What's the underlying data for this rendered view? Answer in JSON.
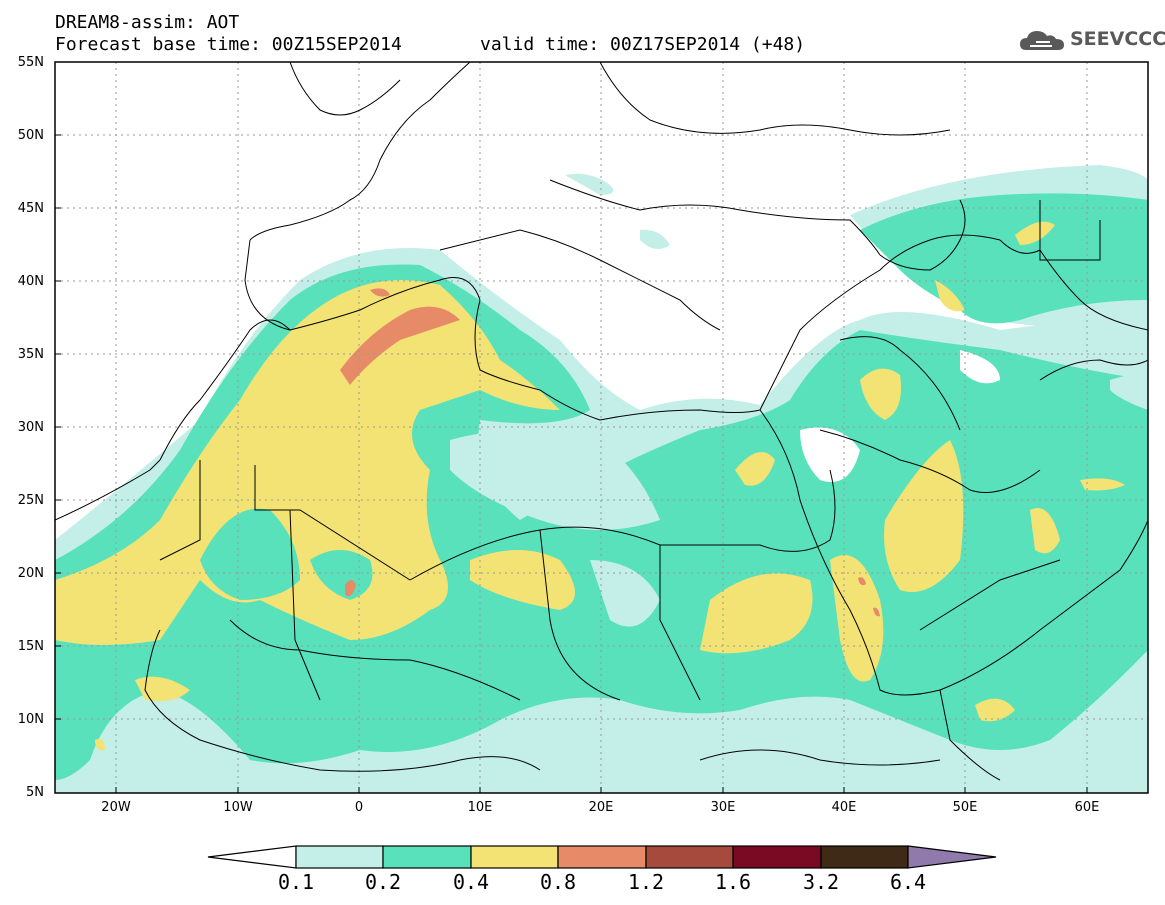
{
  "header": {
    "line1": "DREAM8-assim: AOT",
    "line2a": "Forecast base time: 00Z15SEP2014",
    "line2b": "valid time: 00Z17SEP2014 (+48)",
    "logo_text": "SEEVCCC"
  },
  "axes": {
    "lat_labels": [
      "55N",
      "50N",
      "45N",
      "40N",
      "35N",
      "30N",
      "25N",
      "20N",
      "15N",
      "10N",
      "5N"
    ],
    "lon_labels": [
      "20W",
      "10W",
      "0",
      "10E",
      "20E",
      "30E",
      "40E",
      "50E",
      "60E"
    ]
  },
  "legend": {
    "thresholds": [
      "0.1",
      "0.2",
      "0.4",
      "0.8",
      "1.2",
      "1.6",
      "3.2",
      "6.4"
    ],
    "colors": [
      "#ffffff",
      "#c4efe9",
      "#59e1bb",
      "#f3e274",
      "#e68a67",
      "#a64a3e",
      "#7a0a24",
      "#3e2a16",
      "#9079ab"
    ]
  }
}
